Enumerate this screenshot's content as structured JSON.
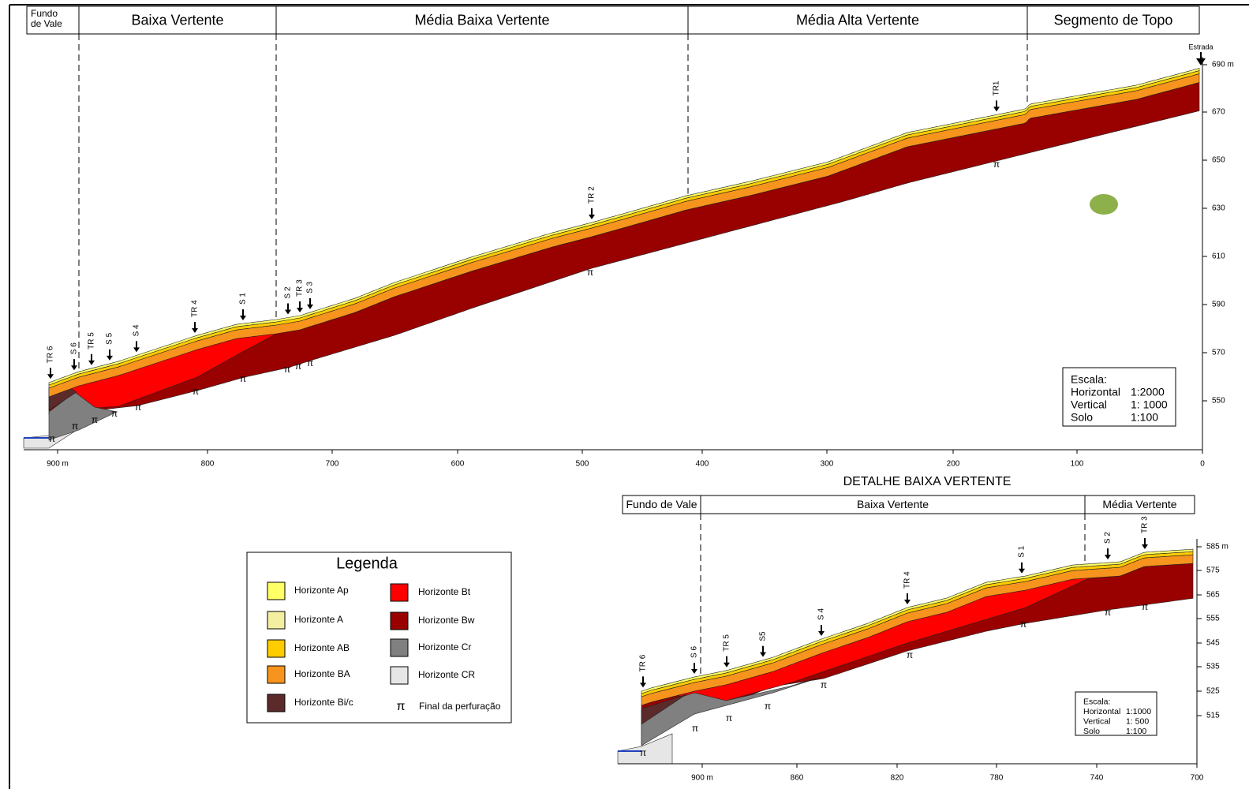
{
  "main": {
    "valley_floor": [
      "Fundo",
      "de Vale"
    ],
    "segments": [
      "Baixa Vertente",
      "Média Baixa Vertente",
      "Média Alta Vertente",
      "Segmento de Topo"
    ],
    "x_ticks": [
      "900 m",
      "800",
      "700",
      "600",
      "500",
      "400",
      "300",
      "200",
      "100",
      "0"
    ],
    "y_ticks": [
      "690 m",
      "670",
      "650",
      "630",
      "610",
      "590",
      "570",
      "550"
    ],
    "markers": [
      "TR 6",
      "S 6",
      "TR 5",
      "S 5",
      "S 4",
      "TR 4",
      "S 1",
      "S 2",
      "TR 3",
      "S 3",
      "TR 2",
      "TR1"
    ],
    "road": "Estrada",
    "scale": {
      "title": "Escala:",
      "rows": [
        [
          "Horizontal",
          "1:2000"
        ],
        [
          "Vertical",
          "1: 1000"
        ],
        [
          "Solo",
          "1:100"
        ]
      ]
    }
  },
  "detail": {
    "title": "DETALHE BAIXA VERTENTE",
    "segments": [
      "Fundo de Vale",
      "Baixa Vertente",
      "Média Vertente"
    ],
    "x_ticks": [
      "900 m",
      "860",
      "820",
      "780",
      "740",
      "700"
    ],
    "y_ticks": [
      "585 m",
      "575",
      "565",
      "555",
      "545",
      "535",
      "525",
      "515"
    ],
    "markers": [
      "TR 6",
      "S 6",
      "TR 5",
      "S5",
      "S 4",
      "TR 4",
      "S 1",
      "S 2",
      "TR 3"
    ],
    "scale": {
      "title": "Escala:",
      "rows": [
        [
          "Horizontal",
          "1:1000"
        ],
        [
          "Vertical",
          "1: 500"
        ],
        [
          "Solo",
          "1:100"
        ]
      ]
    }
  },
  "legend": {
    "title": "Legenda",
    "items": [
      "Horizonte Ap",
      "Horizonte A",
      "Horizonte AB",
      "Horizonte BA",
      "Horizonte Bi/c",
      "Horizonte Bt",
      "Horizonte Bw",
      "Horizonte Cr",
      "Horizonte CR",
      "Final da perfuração"
    ]
  },
  "pi_symbol": "π"
}
